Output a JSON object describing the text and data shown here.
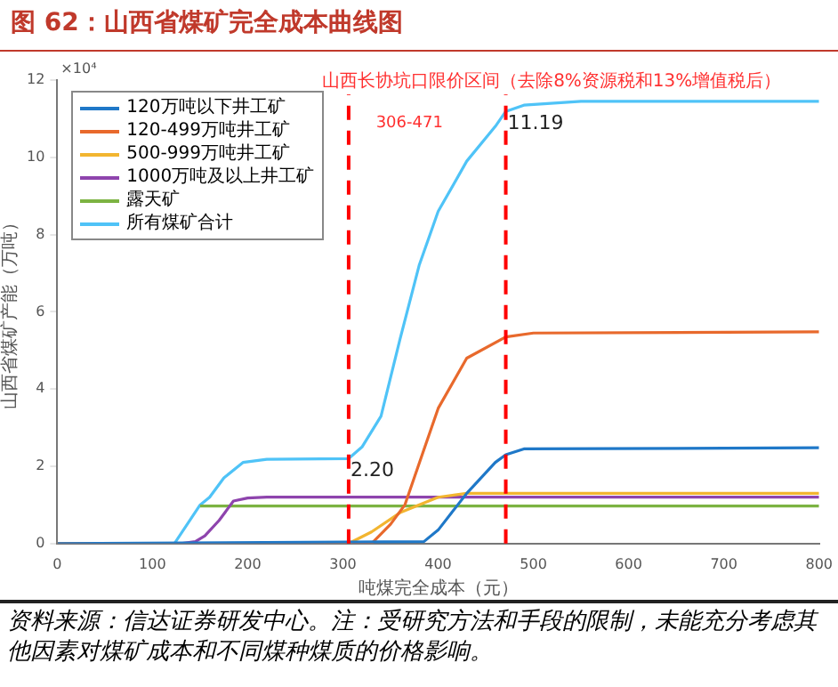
{
  "chart_data": {
    "type": "line",
    "title": "图 62：山西省煤矿完全成本曲线图",
    "xlabel": "吨煤完全成本（元）",
    "ylabel": "山西省煤矿产能（万吨）",
    "xlim": [
      0,
      800
    ],
    "xticks": [
      0,
      100,
      200,
      300,
      400,
      500,
      600,
      700,
      800
    ],
    "ylim": [
      0,
      12
    ],
    "yticks": [
      0,
      2,
      4,
      6,
      8,
      10,
      12
    ],
    "grid": false,
    "legend": "top left",
    "marker": "none",
    "line_style": "solid",
    "series": [
      {
        "name": "120万吨以下井工矿",
        "color": "#1f78c8",
        "x": [
          0,
          385,
          400,
          430,
          460,
          471,
          490,
          800
        ],
        "values": [
          0,
          0.05,
          0.35,
          1.3,
          2.1,
          2.3,
          2.45,
          2.48
        ]
      },
      {
        "name": "120-499万吨井工矿",
        "color": "#e8692c",
        "x": [
          0,
          330,
          350,
          365,
          400,
          430,
          471,
          500,
          800
        ],
        "values": [
          0,
          0,
          0.5,
          1.0,
          3.5,
          4.8,
          5.35,
          5.45,
          5.48
        ]
      },
      {
        "name": "500-999万吨井工矿",
        "color": "#f2b530",
        "x": [
          0,
          306,
          330,
          360,
          400,
          430,
          800
        ],
        "values": [
          0,
          0,
          0.3,
          0.8,
          1.2,
          1.3,
          1.3
        ]
      },
      {
        "name": "1000万吨及以上井工矿",
        "color": "#8e44ad",
        "x": [
          130,
          145,
          155,
          170,
          185,
          200,
          220,
          800
        ],
        "values": [
          0,
          0.05,
          0.2,
          0.6,
          1.1,
          1.18,
          1.2,
          1.2
        ]
      },
      {
        "name": "露天矿",
        "color": "#7cb342",
        "x": [
          150,
          800
        ],
        "values": [
          0.97,
          0.97
        ]
      },
      {
        "name": "所有煤矿合计",
        "color": "#4fc3f7",
        "x": [
          50,
          123,
          150,
          160,
          175,
          195,
          220,
          306,
          320,
          340,
          360,
          380,
          400,
          430,
          460,
          471,
          490,
          550,
          800
        ],
        "values": [
          0,
          0,
          1.0,
          1.2,
          1.7,
          2.1,
          2.18,
          2.2,
          2.5,
          3.3,
          5.3,
          7.2,
          8.6,
          9.9,
          10.8,
          11.19,
          11.35,
          11.45,
          11.45
        ]
      }
    ],
    "ref_lines": [
      {
        "axis": "x",
        "value": 306,
        "color": "#ff0000",
        "line_style": "dashed"
      },
      {
        "axis": "x",
        "value": 471,
        "color": "#ff0000",
        "line_style": "dashed"
      }
    ],
    "annotations": [
      "山西长协坑口限价区间（去除8%资源税和13%增值税后）",
      "306-471",
      "×10⁴",
      {
        "text": "2.20",
        "x": 306,
        "y": 2.2
      },
      {
        "text": "11.19",
        "x": 471,
        "y": 11.19
      },
      "资料来源：信达证券研发中心。注：受研究方法和手段的限制，未能充分考虑其他因素对煤矿成本和不同煤种煤质的价格影响。"
    ]
  }
}
